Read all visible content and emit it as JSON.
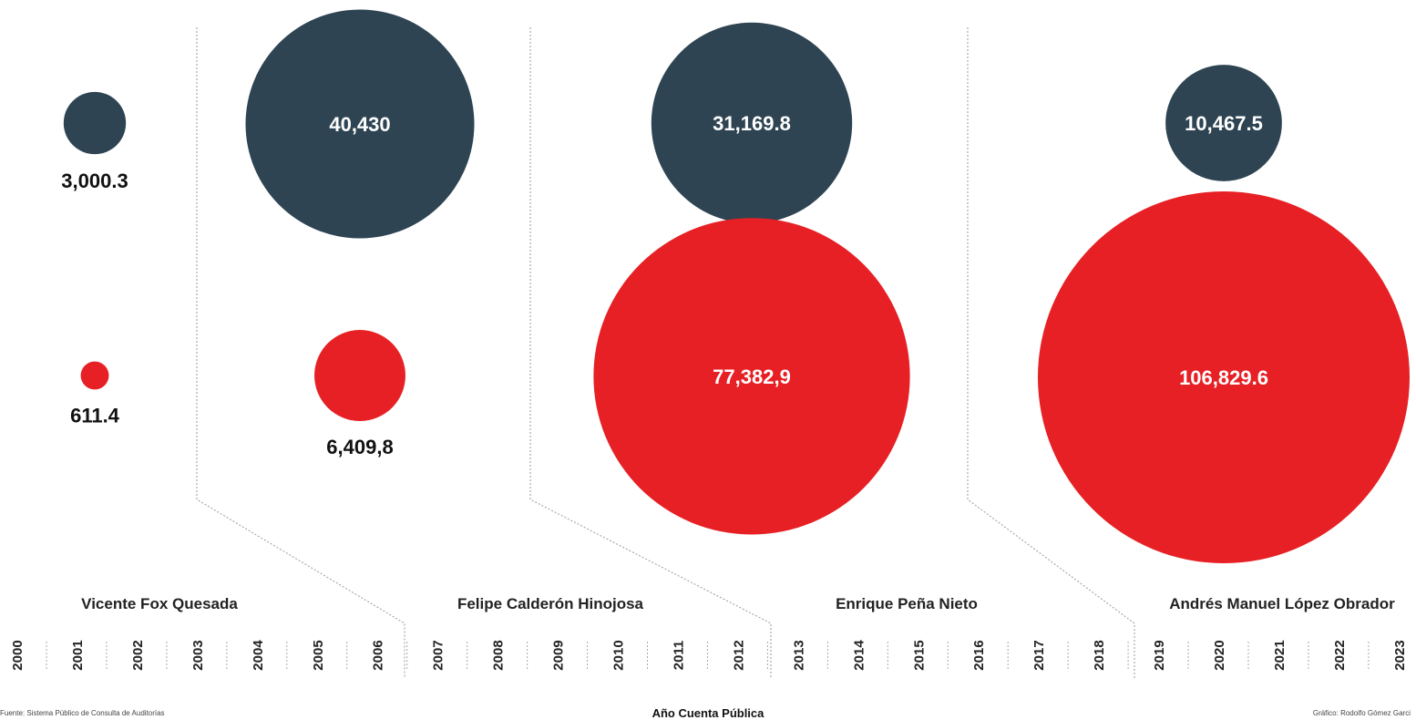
{
  "chart_data": {
    "type": "bubble",
    "xlabel": "Año Cuenta Pública",
    "years": [
      "2000",
      "2001",
      "2002",
      "2003",
      "2004",
      "2005",
      "2006",
      "2007",
      "2008",
      "2009",
      "2010",
      "2011",
      "2012",
      "2013",
      "2014",
      "2015",
      "2016",
      "2017",
      "2018",
      "2019",
      "2020",
      "2021",
      "2022",
      "2023"
    ],
    "periods": [
      {
        "president": "Vicente Fox Quesada",
        "years": [
          "2000",
          "2001",
          "2002",
          "2003",
          "2004",
          "2005",
          "2006"
        ]
      },
      {
        "president": "Felipe Calderón Hinojosa",
        "years": [
          "2007",
          "2008",
          "2009",
          "2010",
          "2011",
          "2012"
        ]
      },
      {
        "president": "Enrique Peña Nieto",
        "years": [
          "2013",
          "2014",
          "2015",
          "2016",
          "2017",
          "2018"
        ]
      },
      {
        "president": "Andrés Manuel López Obrador",
        "years": [
          "2019",
          "2020",
          "2021",
          "2022",
          "2023"
        ]
      }
    ],
    "series": [
      {
        "color": "#2e4452",
        "values": [
          3000.3,
          40430,
          31169.8,
          10467.5
        ],
        "labels": [
          "3,000.3",
          "40,430",
          "31,169.8",
          "10,467.5"
        ]
      },
      {
        "color": "#e62024",
        "values": [
          611.4,
          6409.8,
          77382.9,
          106829.6
        ],
        "labels": [
          "611.4",
          "6,409,8",
          "77,382,9",
          "106,829.6"
        ]
      }
    ],
    "source": "Fuente: Sistema Público de Consulta de Auditorías",
    "credit": "Gráfico: Rodolfo Gómez Garci"
  }
}
